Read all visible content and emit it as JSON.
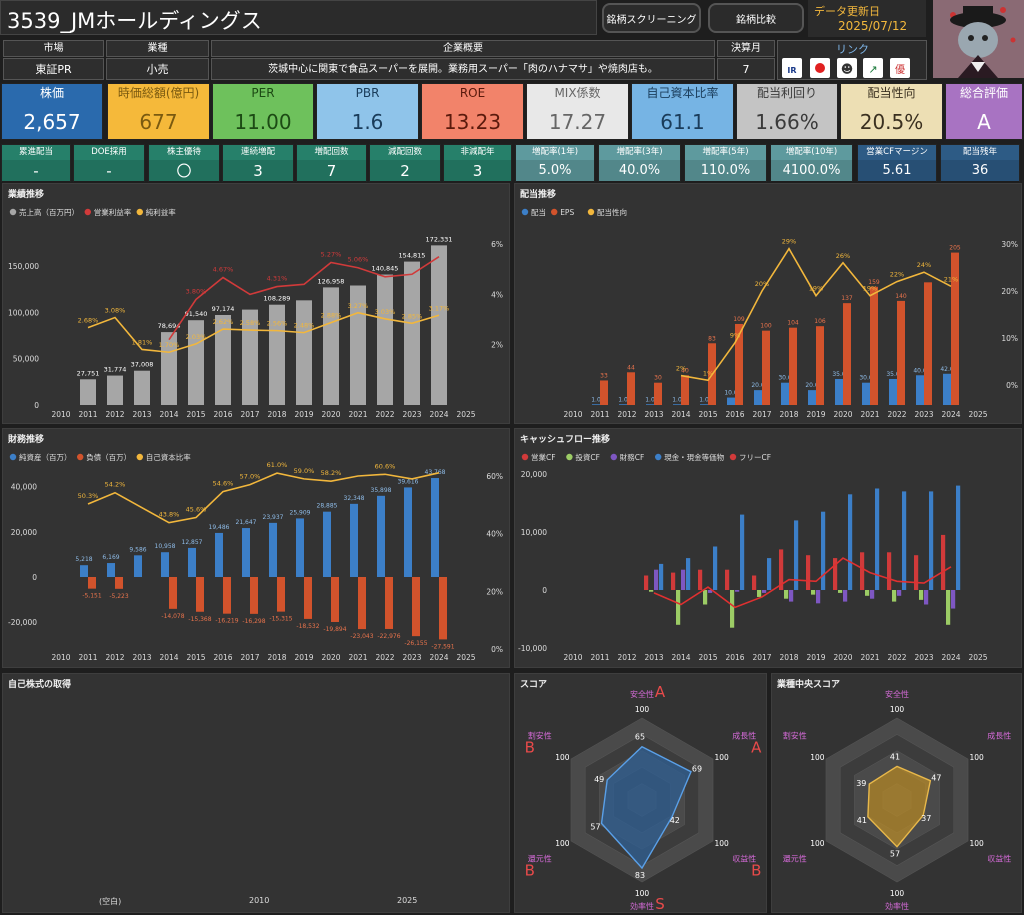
{
  "header": {
    "title": "3539_JMホールディングス",
    "screening_btn": "銘柄スクリーニング",
    "compare_btn": "銘柄比較",
    "updated_label": "データ更新日",
    "updated_date": "2025/07/12"
  },
  "info": {
    "market_label": "市場",
    "market": "東証PR",
    "industry_label": "業種",
    "industry": "小売",
    "overview_label": "企業概要",
    "overview": "茨城中心に関東で食品スーパーを展開。業務用スーパー「肉のハナマサ」や焼肉店も。",
    "settle_label": "決算月",
    "settle": "7",
    "link_label": "リンク",
    "links": [
      "IR BANK",
      "Kabutan",
      "minkabu",
      "株探",
      "株主優待"
    ]
  },
  "kpis": [
    {
      "label": "株価",
      "value": "2,657",
      "bg": "#2a6aad",
      "fg": "#ffffff",
      "lc": "#ffffff",
      "lb": "#2a6aad"
    },
    {
      "label": "時価総額(億円)",
      "value": "677",
      "bg": "#f5b93a",
      "fg": "#7a5a10",
      "lc": "#7a5a10",
      "lb": "#f5b93a"
    },
    {
      "label": "PER",
      "value": "11.00",
      "bg": "#6ec15c",
      "fg": "#1c4a14",
      "lc": "#1c4a14",
      "lb": "#6ec15c"
    },
    {
      "label": "PBR",
      "value": "1.6",
      "bg": "#8fc4ea",
      "fg": "#1a3c5a",
      "lc": "#1a3c5a",
      "lb": "#8fc4ea"
    },
    {
      "label": "ROE",
      "value": "13.23",
      "bg": "#f2836a",
      "fg": "#5a1a0c",
      "lc": "#5a1a0c",
      "lb": "#f2836a"
    },
    {
      "label": "MIX係数",
      "value": "17.27",
      "bg": "#e8e8e8",
      "fg": "#666666",
      "lc": "#666666",
      "lb": "#e8e8e8"
    },
    {
      "label": "自己資本比率",
      "value": "61.1",
      "bg": "#76b4e4",
      "fg": "#1a3c5a",
      "lc": "#1a3c5a",
      "lb": "#76b4e4"
    },
    {
      "label": "配当利回り",
      "value": "1.66%",
      "bg": "#c4c4c4",
      "fg": "#3a3a3a",
      "lc": "#3a3a3a",
      "lb": "#c4c4c4"
    },
    {
      "label": "配当性向",
      "value": "20.5%",
      "bg": "#eddfb4",
      "fg": "#3a3020",
      "lc": "#3a3020",
      "lb": "#eddfb4"
    },
    {
      "label": "総合評価",
      "value": "A",
      "bg": "#a873c2",
      "fg": "#ffffff",
      "lc": "#ffffff",
      "lb": "#a873c2"
    }
  ],
  "small_kpis": [
    {
      "label": "累進配当",
      "value": "-",
      "bg": "#26806a"
    },
    {
      "label": "DOE採用",
      "value": "-",
      "bg": "#26806a"
    },
    {
      "label": "株主優待",
      "value": "〇",
      "bg": "#26806a"
    },
    {
      "label": "連続増配",
      "value": "3",
      "bg": "#26806a"
    },
    {
      "label": "増配回数",
      "value": "7",
      "bg": "#26806a"
    },
    {
      "label": "減配回数",
      "value": "2",
      "bg": "#26806a"
    },
    {
      "label": "非減配年",
      "value": "3",
      "bg": "#26806a"
    },
    {
      "label": "増配率(1年)",
      "value": "5.0%",
      "bg": "#5e9a9e"
    },
    {
      "label": "増配率(3年)",
      "value": "40.0%",
      "bg": "#5e9a9e"
    },
    {
      "label": "増配率(5年)",
      "value": "110.0%",
      "bg": "#5e9a9e"
    },
    {
      "label": "増配率(10年)",
      "value": "4100.0%",
      "bg": "#5e9a9e"
    },
    {
      "label": "営業CFマージン",
      "value": "5.61",
      "bg": "#2d5b85"
    },
    {
      "label": "配当残年",
      "value": "36",
      "bg": "#2d5b85"
    }
  ],
  "colors": {
    "gray": "#a6a6a6",
    "red": "#d13a3a",
    "yellow": "#f2b73c",
    "blue": "#3c7fc8",
    "orange": "#d2532c",
    "green": "#9ccc65",
    "purple": "#7e57c2",
    "panel": "#333333"
  },
  "chart_data": [
    {
      "type": "bar",
      "title": "業績推移",
      "legend": [
        "売上高（百万円）",
        "営業利益率",
        "純利益率"
      ],
      "x": [
        2010,
        2011,
        2012,
        2013,
        2014,
        2015,
        2016,
        2017,
        2018,
        2019,
        2020,
        2021,
        2022,
        2023,
        2024,
        2025
      ],
      "sales_bars": [
        2011,
        2012,
        2013,
        2014,
        2015,
        2016,
        2017,
        2018,
        2019,
        2020,
        2021,
        2022,
        2023,
        2024
      ],
      "sales": [
        27751,
        31774,
        37008,
        78694,
        91540,
        97174,
        103000,
        108289,
        113000,
        126958,
        129000,
        140845,
        154815,
        172331
      ],
      "sales_labels": {
        "2011": "27,751",
        "2012": "31,774",
        "2013": "37,008",
        "2014": "78,694",
        "2015": "91,540",
        "2016": "97,174",
        "2018": "108,289",
        "2020": "126,958",
        "2022": "140,845",
        "2023": "154,815",
        "2024": "172,331"
      },
      "net_margin_x": [
        2011,
        2012,
        2013,
        2014,
        2015,
        2016,
        2017,
        2018,
        2019,
        2020,
        2021,
        2022,
        2023,
        2024
      ],
      "net_margin": [
        2.68,
        3.08,
        1.81,
        1.7,
        2.03,
        2.62,
        2.58,
        2.56,
        2.48,
        2.88,
        3.27,
        3.03,
        2.85,
        3.17
      ],
      "op_margin_x": [
        2014,
        2015,
        2016,
        2017,
        2018,
        2019,
        2020,
        2021,
        2022,
        2023,
        2024
      ],
      "op_margin": [
        2.2,
        3.8,
        4.67,
        4.0,
        4.31,
        4.4,
        5.27,
        5.06,
        4.7,
        4.8,
        5.5
      ],
      "op_margin_labels": {
        "2015": "3.80%",
        "2016": "4.67%",
        "2018": "4.31%",
        "2020": "5.27%",
        "2021": "5.06%"
      },
      "ylim": [
        0,
        190000
      ],
      "yticks": [
        0,
        50000,
        100000,
        150000
      ],
      "ytick_labels": [
        "0",
        "50,000",
        "100,000",
        "150,000"
      ],
      "y2ticks": [
        2,
        4,
        6
      ],
      "y2tick_labels": [
        "2%",
        "4%",
        "6%"
      ]
    },
    {
      "type": "bar",
      "title": "配当推移",
      "legend": [
        "配当",
        "EPS",
        "配当性向"
      ],
      "x": [
        2010,
        2011,
        2012,
        2013,
        2014,
        2015,
        2016,
        2017,
        2018,
        2019,
        2020,
        2021,
        2022,
        2023,
        2024,
        2025
      ],
      "bar_x": [
        2011,
        2012,
        2013,
        2014,
        2015,
        2016,
        2017,
        2018,
        2019,
        2020,
        2021,
        2022,
        2023,
        2024
      ],
      "dividend": [
        1.0,
        1.0,
        1.0,
        1.0,
        1.0,
        10.0,
        20.0,
        30.0,
        20.0,
        35.0,
        30.0,
        35.0,
        40.0,
        42.0
      ],
      "dividend_labels": [
        "1.0",
        "1.0",
        "1.0",
        "1.0",
        "1.0",
        "10.0",
        "20.0",
        "30.0",
        "20.0",
        "35.0",
        "30.0",
        "35.0",
        "40.0",
        "42.0"
      ],
      "eps": [
        33,
        44,
        30,
        40,
        83,
        109,
        100,
        104,
        106,
        137,
        159,
        140,
        165,
        205
      ],
      "eps_labels": [
        "33",
        "44",
        "30",
        "40",
        "83",
        "109",
        "100",
        "104",
        "106",
        "137",
        "159",
        "140",
        "",
        "205"
      ],
      "payout_x": [
        2014,
        2015,
        2016,
        2017,
        2018,
        2019,
        2020,
        2021,
        2022,
        2023,
        2024
      ],
      "payout": [
        2,
        1,
        9,
        20,
        29,
        19,
        26,
        19,
        22,
        24,
        21
      ],
      "payout_labels": [
        "2%",
        "1%",
        "9%",
        "20%",
        "29%",
        "19%",
        "26%",
        "19%",
        "22%",
        "24%",
        "21%"
      ],
      "ylim": [
        0,
        230
      ],
      "y2ticks": [
        0,
        10,
        20,
        30
      ],
      "y2tick_labels": [
        "0%",
        "10%",
        "20%",
        "30%"
      ]
    },
    {
      "type": "bar",
      "title": "財務推移",
      "legend": [
        "純資産（百万）",
        "負債（百万）",
        "自己資本比率"
      ],
      "x": [
        2010,
        2011,
        2012,
        2013,
        2014,
        2015,
        2016,
        2017,
        2018,
        2019,
        2020,
        2021,
        2022,
        2023,
        2024,
        2025
      ],
      "bar_x": [
        2011,
        2012,
        2013,
        2014,
        2015,
        2016,
        2017,
        2018,
        2019,
        2020,
        2021,
        2022,
        2023,
        2024
      ],
      "net_assets": [
        5218,
        6169,
        9586,
        10958,
        12857,
        19486,
        21647,
        23937,
        25909,
        28885,
        32348,
        35898,
        39616,
        43768
      ],
      "net_assets_labels": [
        "5,218",
        "6,169",
        "9,586",
        "10,958",
        "12,857",
        "19,486",
        "21,647",
        "23,937",
        "25,909",
        "28,885",
        "32,348",
        "35,898",
        "39,616",
        "43,768"
      ],
      "liabilities": [
        -5151,
        -5223,
        null,
        -14078,
        -15368,
        -16219,
        -16298,
        -15315,
        -18532,
        -19894,
        -23043,
        -22976,
        -26155,
        -27591
      ],
      "liabilities_labels": [
        "-5,151",
        "-5,223",
        "",
        "-14,078",
        "-15,368",
        "-16,219",
        "-16,298",
        "-15,315",
        "-18,532",
        "-19,894",
        "-23,043",
        "-22,976",
        "-26,155",
        "-27,591"
      ],
      "equity_ratio_x": [
        2011,
        2012,
        2014,
        2015,
        2016,
        2017,
        2018,
        2019,
        2020,
        2021,
        2022,
        2023,
        2024
      ],
      "equity_ratio": [
        50.3,
        54.2,
        43.8,
        45.6,
        54.6,
        57.0,
        61.0,
        59.0,
        58.2,
        60.0,
        60.6,
        59.0,
        61.1
      ],
      "equity_ratio_labels": [
        "50.3%",
        "54.2%",
        "43.8%",
        "45.6%",
        "54.6%",
        "57.0%",
        "61.0%",
        "59.0%",
        "58.2%",
        "",
        "60.6%",
        "",
        ""
      ],
      "ylim": [
        -32000,
        48000
      ],
      "yticks": [
        -20000,
        0,
        20000,
        40000
      ],
      "ytick_labels": [
        "-20,000",
        "0",
        "20,000",
        "40,000"
      ],
      "y2ticks": [
        0,
        20,
        40,
        60
      ],
      "y2tick_labels": [
        "0%",
        "20%",
        "40%",
        "60%"
      ]
    },
    {
      "type": "bar",
      "title": "キャッシュフロー推移",
      "legend": [
        "営業CF",
        "投資CF",
        "財務CF",
        "現金・現金等価物",
        "フリーCF"
      ],
      "x": [
        2010,
        2011,
        2012,
        2013,
        2014,
        2015,
        2016,
        2017,
        2018,
        2019,
        2020,
        2021,
        2022,
        2023,
        2024,
        2025
      ],
      "bar_x": [
        2013,
        2014,
        2015,
        2016,
        2017,
        2018,
        2019,
        2020,
        2021,
        2022,
        2023,
        2024
      ],
      "op_cf": [
        2500,
        3000,
        3500,
        3500,
        2500,
        7000,
        6000,
        5500,
        6500,
        6500,
        6000,
        9500
      ],
      "inv_cf": [
        -300,
        -6000,
        -2500,
        -6500,
        -1200,
        -1500,
        -800,
        -500,
        -1000,
        -2000,
        -1700,
        -6000
      ],
      "fin_cf": [
        3500,
        3500,
        -500,
        -300,
        -500,
        -2000,
        -2300,
        -2000,
        -1500,
        -1000,
        -2500,
        -3200
      ],
      "cash": [
        4500,
        5500,
        7500,
        13000,
        5500,
        12000,
        13500,
        16500,
        17500,
        17000,
        17000,
        18000
      ],
      "fcf": [
        -500,
        -2500,
        500,
        -3000,
        -1200,
        1800,
        1500,
        5500,
        3000,
        1500,
        1200,
        4000
      ],
      "ylim": [
        -11000,
        21000
      ],
      "yticks": [
        -10000,
        0,
        10000,
        20000
      ],
      "ytick_labels": [
        "-10,000",
        "0",
        "10,000",
        "20,000"
      ]
    }
  ],
  "buyback": {
    "title": "自己株式の取得",
    "empty_label": "(空白)",
    "x_start": "2010",
    "x_end": "2025"
  },
  "score": {
    "title": "スコア",
    "axes": [
      "安全性",
      "成長性",
      "収益性",
      "効率性",
      "還元性",
      "割安性"
    ],
    "grades": [
      "A",
      "A",
      "B",
      "S",
      "B",
      "B"
    ],
    "values": [
      65,
      69,
      42,
      83,
      57,
      49
    ],
    "max_label": "100"
  },
  "industry_score": {
    "title": "業種中央スコア",
    "axes": [
      "安全性",
      "成長性",
      "収益性",
      "効率性",
      "還元性",
      "割安性"
    ],
    "values": [
      41,
      47,
      37,
      57,
      41,
      39
    ],
    "max_label": "100"
  }
}
